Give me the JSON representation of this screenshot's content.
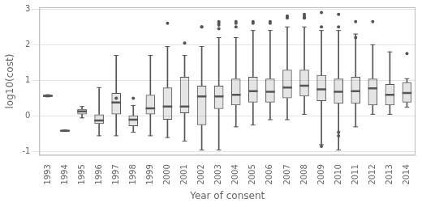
{
  "chart_data": {
    "type": "box",
    "xlabel": "Year of consent",
    "ylabel": "log10(cost)",
    "categories": [
      1993,
      1994,
      1995,
      1996,
      1997,
      1998,
      1999,
      2000,
      2001,
      2002,
      2003,
      2004,
      2005,
      2006,
      2007,
      2008,
      2009,
      2010,
      2011,
      2012,
      2013,
      2014
    ],
    "boxes": [
      {
        "q1": 0.54,
        "median": 0.57,
        "q3": 0.6,
        "whislo": 0.54,
        "whishi": 0.6,
        "fliers": []
      },
      {
        "q1": -0.43,
        "median": -0.41,
        "q3": -0.39,
        "whislo": -0.43,
        "whishi": -0.39,
        "fliers": []
      },
      {
        "q1": 0.05,
        "median": 0.13,
        "q3": 0.2,
        "whislo": -0.05,
        "whishi": 0.27,
        "fliers": []
      },
      {
        "q1": -0.22,
        "median": -0.12,
        "q3": 0.05,
        "whislo": -0.55,
        "whishi": 0.8,
        "fliers": []
      },
      {
        "q1": 0.05,
        "median": 0.38,
        "q3": 0.65,
        "whislo": -0.55,
        "whishi": 1.7,
        "fliers": [
          0.5
        ]
      },
      {
        "q1": -0.28,
        "median": -0.1,
        "q3": 0.02,
        "whislo": -0.45,
        "whishi": 0.3,
        "fliers": [
          0.5
        ]
      },
      {
        "q1": 0.05,
        "median": 0.22,
        "q3": 0.6,
        "whislo": -0.55,
        "whishi": 1.7,
        "fliers": []
      },
      {
        "q1": -0.1,
        "median": 0.27,
        "q3": 0.8,
        "whislo": -0.6,
        "whishi": 1.95,
        "fliers": [
          2.6
        ]
      },
      {
        "q1": 0.08,
        "median": 0.27,
        "q3": 1.1,
        "whislo": -0.7,
        "whishi": 1.7,
        "fliers": [
          2.05
        ]
      },
      {
        "q1": -0.25,
        "median": 0.55,
        "q3": 0.85,
        "whislo": -0.95,
        "whishi": 1.95,
        "fliers": [
          2.5,
          2.5
        ]
      },
      {
        "q1": 0.2,
        "median": 0.55,
        "q3": 0.85,
        "whislo": -0.95,
        "whishi": 2.2,
        "fliers": [
          2.55,
          2.6,
          2.65,
          2.45
        ]
      },
      {
        "q1": 0.3,
        "median": 0.6,
        "q3": 1.05,
        "whislo": -0.3,
        "whishi": 2.2,
        "fliers": [
          2.5,
          2.6,
          2.65
        ]
      },
      {
        "q1": 0.38,
        "median": 0.7,
        "q3": 1.1,
        "whislo": -0.25,
        "whishi": 2.4,
        "fliers": [
          2.6,
          2.65
        ]
      },
      {
        "q1": 0.38,
        "median": 0.68,
        "q3": 1.05,
        "whislo": -0.1,
        "whishi": 2.4,
        "fliers": [
          2.6,
          2.65
        ]
      },
      {
        "q1": 0.5,
        "median": 0.8,
        "q3": 1.3,
        "whislo": -0.1,
        "whishi": 2.5,
        "fliers": [
          2.75,
          2.8,
          2.8
        ]
      },
      {
        "q1": 0.55,
        "median": 0.85,
        "q3": 1.3,
        "whislo": 0.05,
        "whishi": 2.5,
        "fliers": [
          2.75,
          2.8,
          2.85,
          2.75
        ]
      },
      {
        "q1": 0.42,
        "median": 0.75,
        "q3": 1.15,
        "whislo": -0.8,
        "whishi": 2.4,
        "fliers": [
          2.5,
          2.9,
          -0.85
        ]
      },
      {
        "q1": 0.35,
        "median": 0.68,
        "q3": 1.05,
        "whislo": -0.95,
        "whishi": 2.4,
        "fliers": [
          2.5,
          2.85,
          -0.45,
          -0.55
        ]
      },
      {
        "q1": 0.35,
        "median": 0.7,
        "q3": 1.1,
        "whislo": -0.3,
        "whishi": 2.3,
        "fliers": [
          2.65,
          2.2
        ]
      },
      {
        "q1": 0.3,
        "median": 0.78,
        "q3": 1.05,
        "whislo": 0.05,
        "whishi": 2.0,
        "fliers": [
          2.65
        ]
      },
      {
        "q1": 0.3,
        "median": 0.6,
        "q3": 0.9,
        "whislo": 0.05,
        "whishi": 1.8,
        "fliers": []
      },
      {
        "q1": 0.38,
        "median": 0.65,
        "q3": 0.95,
        "whislo": 0.25,
        "whishi": 1.05,
        "fliers": [
          1.75
        ]
      }
    ],
    "ylim": [
      -1.1,
      3.05
    ],
    "yticks": [
      -1,
      0,
      1,
      2,
      3
    ],
    "grid": true,
    "color": "#555555"
  }
}
